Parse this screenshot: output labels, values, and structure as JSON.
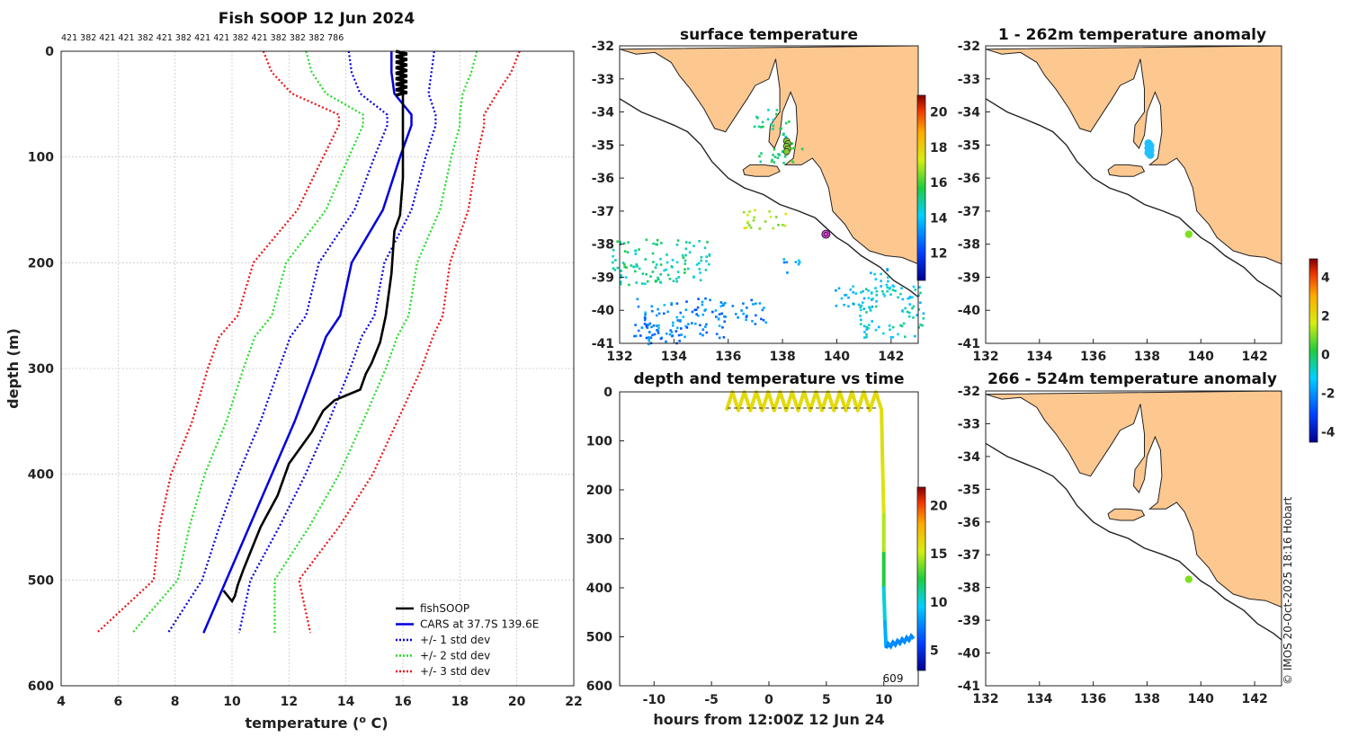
{
  "chart_data": [
    {
      "type": "line",
      "id": "profile",
      "title": "Fish SOOP 12 Jun 2024",
      "top_annotation": "421 382 421 421 382 421 382 421 421 382 421 382 382 382 786",
      "xlabel": "temperature (",
      "xlabel_sup": "o",
      "xlabel_tail": " C)",
      "ylabel": "depth (m)",
      "xlim": [
        4,
        22
      ],
      "ylim": [
        0,
        600
      ],
      "xticks": [
        4,
        6,
        8,
        10,
        12,
        14,
        16,
        18,
        20,
        22
      ],
      "yticks": [
        0,
        100,
        200,
        300,
        400,
        500,
        600
      ],
      "legend": [
        "fishSOOP",
        "CARS at 37.7S 139.6E",
        "+/- 1 std dev",
        "+/- 2 std dev",
        "+/- 3 std dev"
      ],
      "legend_colors": [
        "#000000",
        "#0000dd",
        "#0000dd",
        "#22dd22",
        "#ee1111"
      ],
      "cars_depth": [
        0,
        20,
        40,
        60,
        70,
        100,
        150,
        200,
        250,
        270,
        300,
        350,
        400,
        450,
        500,
        550
      ],
      "cars_mean": [
        15.6,
        15.6,
        15.7,
        16.3,
        16.3,
        15.9,
        15.3,
        14.2,
        13.8,
        13.3,
        12.9,
        12.2,
        11.4,
        10.6,
        9.8,
        9.0
      ],
      "cars_sd": [
        1.5,
        1.4,
        1.2,
        0.85,
        0.85,
        0.9,
        1.0,
        1.15,
        1.2,
        1.25,
        1.25,
        1.2,
        1.18,
        1.05,
        0.85,
        1.25
      ],
      "fish_depth": [
        0,
        10,
        30,
        50,
        90,
        120,
        155,
        170,
        210,
        250,
        275,
        295,
        305,
        320,
        330,
        340,
        350,
        360,
        390,
        420,
        440,
        450,
        470,
        490,
        505,
        515,
        520,
        510
      ],
      "fish_temp": [
        15.9,
        16.0,
        16.0,
        16.0,
        16.0,
        16.0,
        15.9,
        15.7,
        15.6,
        15.4,
        15.2,
        14.9,
        14.7,
        14.5,
        13.6,
        13.2,
        13.0,
        12.8,
        12.0,
        11.6,
        11.2,
        11.0,
        10.7,
        10.4,
        10.2,
        10.1,
        10.0,
        9.7
      ]
    },
    {
      "type": "line",
      "id": "depth_time",
      "title": "depth and temperature vs time",
      "xlabel": "hours from 12:00Z 12 Jun 24",
      "xlim": [
        -13,
        13
      ],
      "ylim": [
        0,
        600
      ],
      "xticks": [
        -10,
        -5,
        0,
        5,
        10
      ],
      "yticks": [
        0,
        100,
        200,
        300,
        400,
        500,
        600
      ],
      "colorbar_ticks": [
        5,
        10,
        15,
        20
      ],
      "colorbar_range": [
        3,
        22
      ],
      "annotation": "609"
    },
    {
      "type": "heatmap",
      "id": "surface_map",
      "title": "surface temperature",
      "xlim": [
        132,
        143
      ],
      "ylim": [
        -41,
        -32
      ],
      "xticks": [
        132,
        134,
        136,
        138,
        140,
        142
      ],
      "yticks": [
        -32,
        -33,
        -34,
        -35,
        -36,
        -37,
        -38,
        -39,
        -40,
        -41
      ],
      "colorbar_ticks": [
        12,
        14,
        16,
        18,
        20
      ],
      "colorbar_range": [
        10.5,
        21
      ]
    },
    {
      "type": "heatmap",
      "id": "anomaly_upper",
      "title": "1 - 262m temperature anomaly",
      "xlim": [
        132,
        143
      ],
      "ylim": [
        -41,
        -32
      ],
      "xticks": [
        132,
        134,
        136,
        138,
        140,
        142
      ],
      "yticks": [
        -32,
        -33,
        -34,
        -35,
        -36,
        -37,
        -38,
        -39,
        -40,
        -41
      ]
    },
    {
      "type": "heatmap",
      "id": "anomaly_lower",
      "title": "266 - 524m temperature anomaly",
      "xlim": [
        132,
        143
      ],
      "ylim": [
        -41,
        -32
      ],
      "xticks": [
        132,
        134,
        136,
        138,
        140,
        142
      ],
      "yticks": [
        -32,
        -33,
        -34,
        -35,
        -36,
        -37,
        -38,
        -39,
        -40,
        -41
      ],
      "colorbar_ticks": [
        -4,
        -2,
        0,
        2,
        4
      ],
      "colorbar_range": [
        -4.5,
        5
      ]
    }
  ],
  "credit": "© IMOS 20-Oct-2025 18:16 Hobart"
}
